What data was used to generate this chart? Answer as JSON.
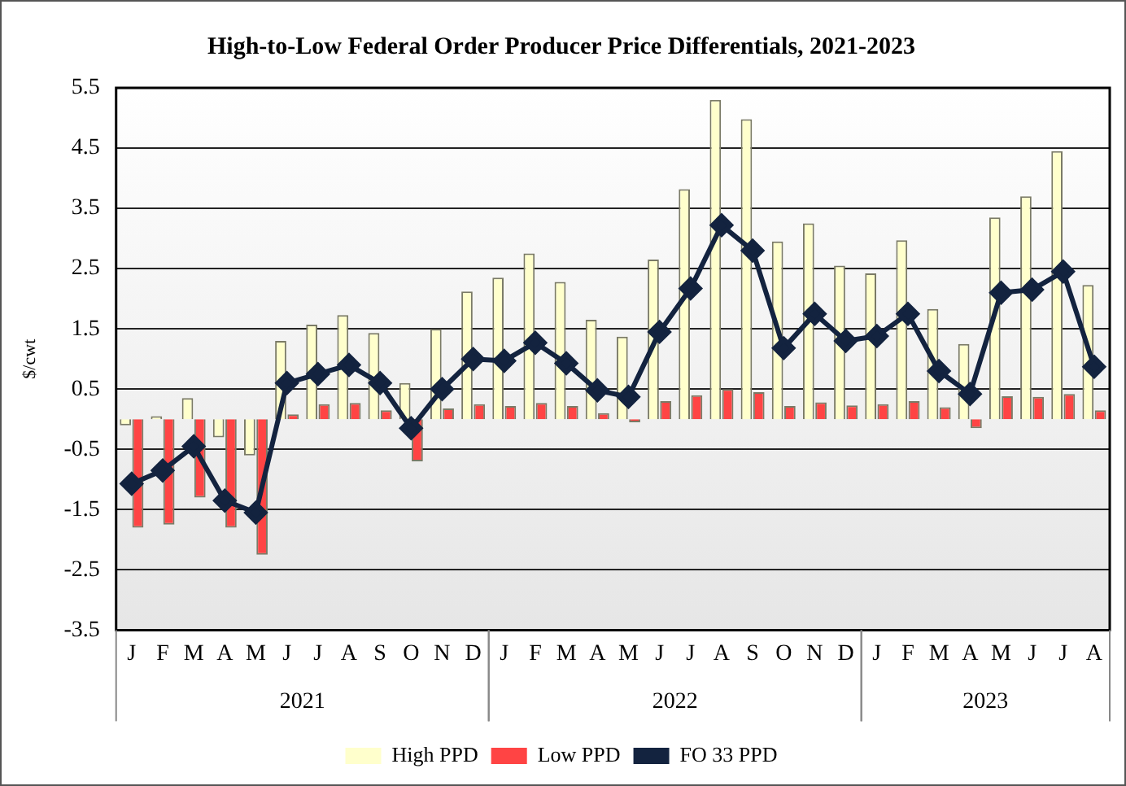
{
  "chart_data": {
    "type": "bar",
    "title": "High-to-Low Federal Order Producer Price Differentials, 2021-2023",
    "ylabel": "$/cwt",
    "categories": [
      "J",
      "F",
      "M",
      "A",
      "M",
      "J",
      "J",
      "A",
      "S",
      "O",
      "N",
      "D",
      "J",
      "F",
      "M",
      "A",
      "M",
      "J",
      "J",
      "A",
      "S",
      "O",
      "N",
      "D",
      "J",
      "F",
      "M",
      "A",
      "M",
      "J",
      "J",
      "A"
    ],
    "annotations": [
      "2021",
      "2022",
      "2023"
    ],
    "series": [
      {
        "name": "High PPD",
        "color": "#ffffcc",
        "values": [
          -0.1,
          0.05,
          0.35,
          -0.3,
          -0.6,
          1.3,
          1.57,
          1.73,
          1.43,
          0.6,
          1.5,
          2.12,
          2.35,
          2.75,
          2.28,
          1.65,
          1.37,
          2.65,
          3.82,
          5.3,
          4.98,
          2.95,
          3.25,
          2.55,
          2.42,
          2.97,
          1.83,
          1.25,
          3.35,
          3.7,
          4.45,
          2.23
        ]
      },
      {
        "name": "Low PPD",
        "color": "#ff4444",
        "values": [
          -1.8,
          -1.75,
          -1.3,
          -1.8,
          -2.25,
          0.08,
          0.25,
          0.27,
          0.15,
          -0.7,
          0.18,
          0.25,
          0.22,
          0.27,
          0.22,
          0.1,
          -0.05,
          0.3,
          0.4,
          0.5,
          0.45,
          0.22,
          0.28,
          0.23,
          0.25,
          0.3,
          0.2,
          -0.15,
          0.38,
          0.37,
          0.42,
          0.15
        ]
      },
      {
        "name": "FO 33 PPD",
        "type": "line",
        "color": "#13233f",
        "marker": "diamond",
        "values": [
          -1.07,
          -0.85,
          -0.45,
          -1.35,
          -1.55,
          0.6,
          0.75,
          0.9,
          0.6,
          -0.15,
          0.5,
          1.0,
          0.97,
          1.27,
          0.93,
          0.48,
          0.37,
          1.45,
          2.17,
          3.22,
          2.8,
          1.18,
          1.75,
          1.3,
          1.38,
          1.75,
          0.8,
          0.42,
          2.1,
          2.15,
          2.45,
          0.87
        ]
      }
    ],
    "ylim": [
      -3.5,
      5.5
    ],
    "yticks": [
      -3.5,
      -2.5,
      -1.5,
      -0.5,
      0.5,
      1.5,
      2.5,
      3.5,
      4.5,
      5.5
    ],
    "grid": "y",
    "legend": "bottom"
  }
}
